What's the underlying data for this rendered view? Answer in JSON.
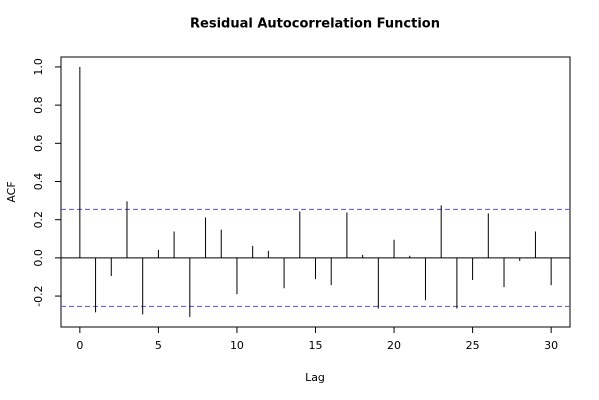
{
  "chart_data": {
    "type": "acf",
    "title": "Residual Autocorrelation Function",
    "x_label": "Lag",
    "y_label": "ACF",
    "x": [
      0,
      1,
      2,
      3,
      4,
      5,
      6,
      7,
      8,
      9,
      10,
      11,
      12,
      13,
      14,
      15,
      16,
      17,
      18,
      19,
      20,
      21,
      22,
      23,
      24,
      25,
      26,
      27,
      28,
      29,
      30
    ],
    "values": [
      1.0,
      -0.285,
      -0.095,
      0.296,
      -0.296,
      0.042,
      0.138,
      -0.31,
      0.212,
      0.148,
      -0.19,
      0.063,
      0.037,
      -0.159,
      0.243,
      -0.111,
      -0.143,
      0.238,
      0.016,
      -0.265,
      0.095,
      0.011,
      -0.222,
      0.275,
      -0.265,
      -0.116,
      0.233,
      -0.153,
      -0.016,
      0.138,
      -0.143
    ],
    "color": "#000000",
    "confidence_bounds": [
      0.254,
      -0.254
    ],
    "bound_color": "#5555cc",
    "xlim": [
      -1.2,
      31.2
    ],
    "ylim": [
      -0.362,
      1.052
    ],
    "xticks": [
      0,
      5,
      10,
      15,
      20,
      25,
      30
    ],
    "yticks": [
      -0.2,
      {
        "value": 0,
        "label": "0.0"
      },
      0.2,
      0.4,
      0.6,
      0.8,
      {
        "value": 1,
        "label": "1.0"
      }
    ]
  }
}
